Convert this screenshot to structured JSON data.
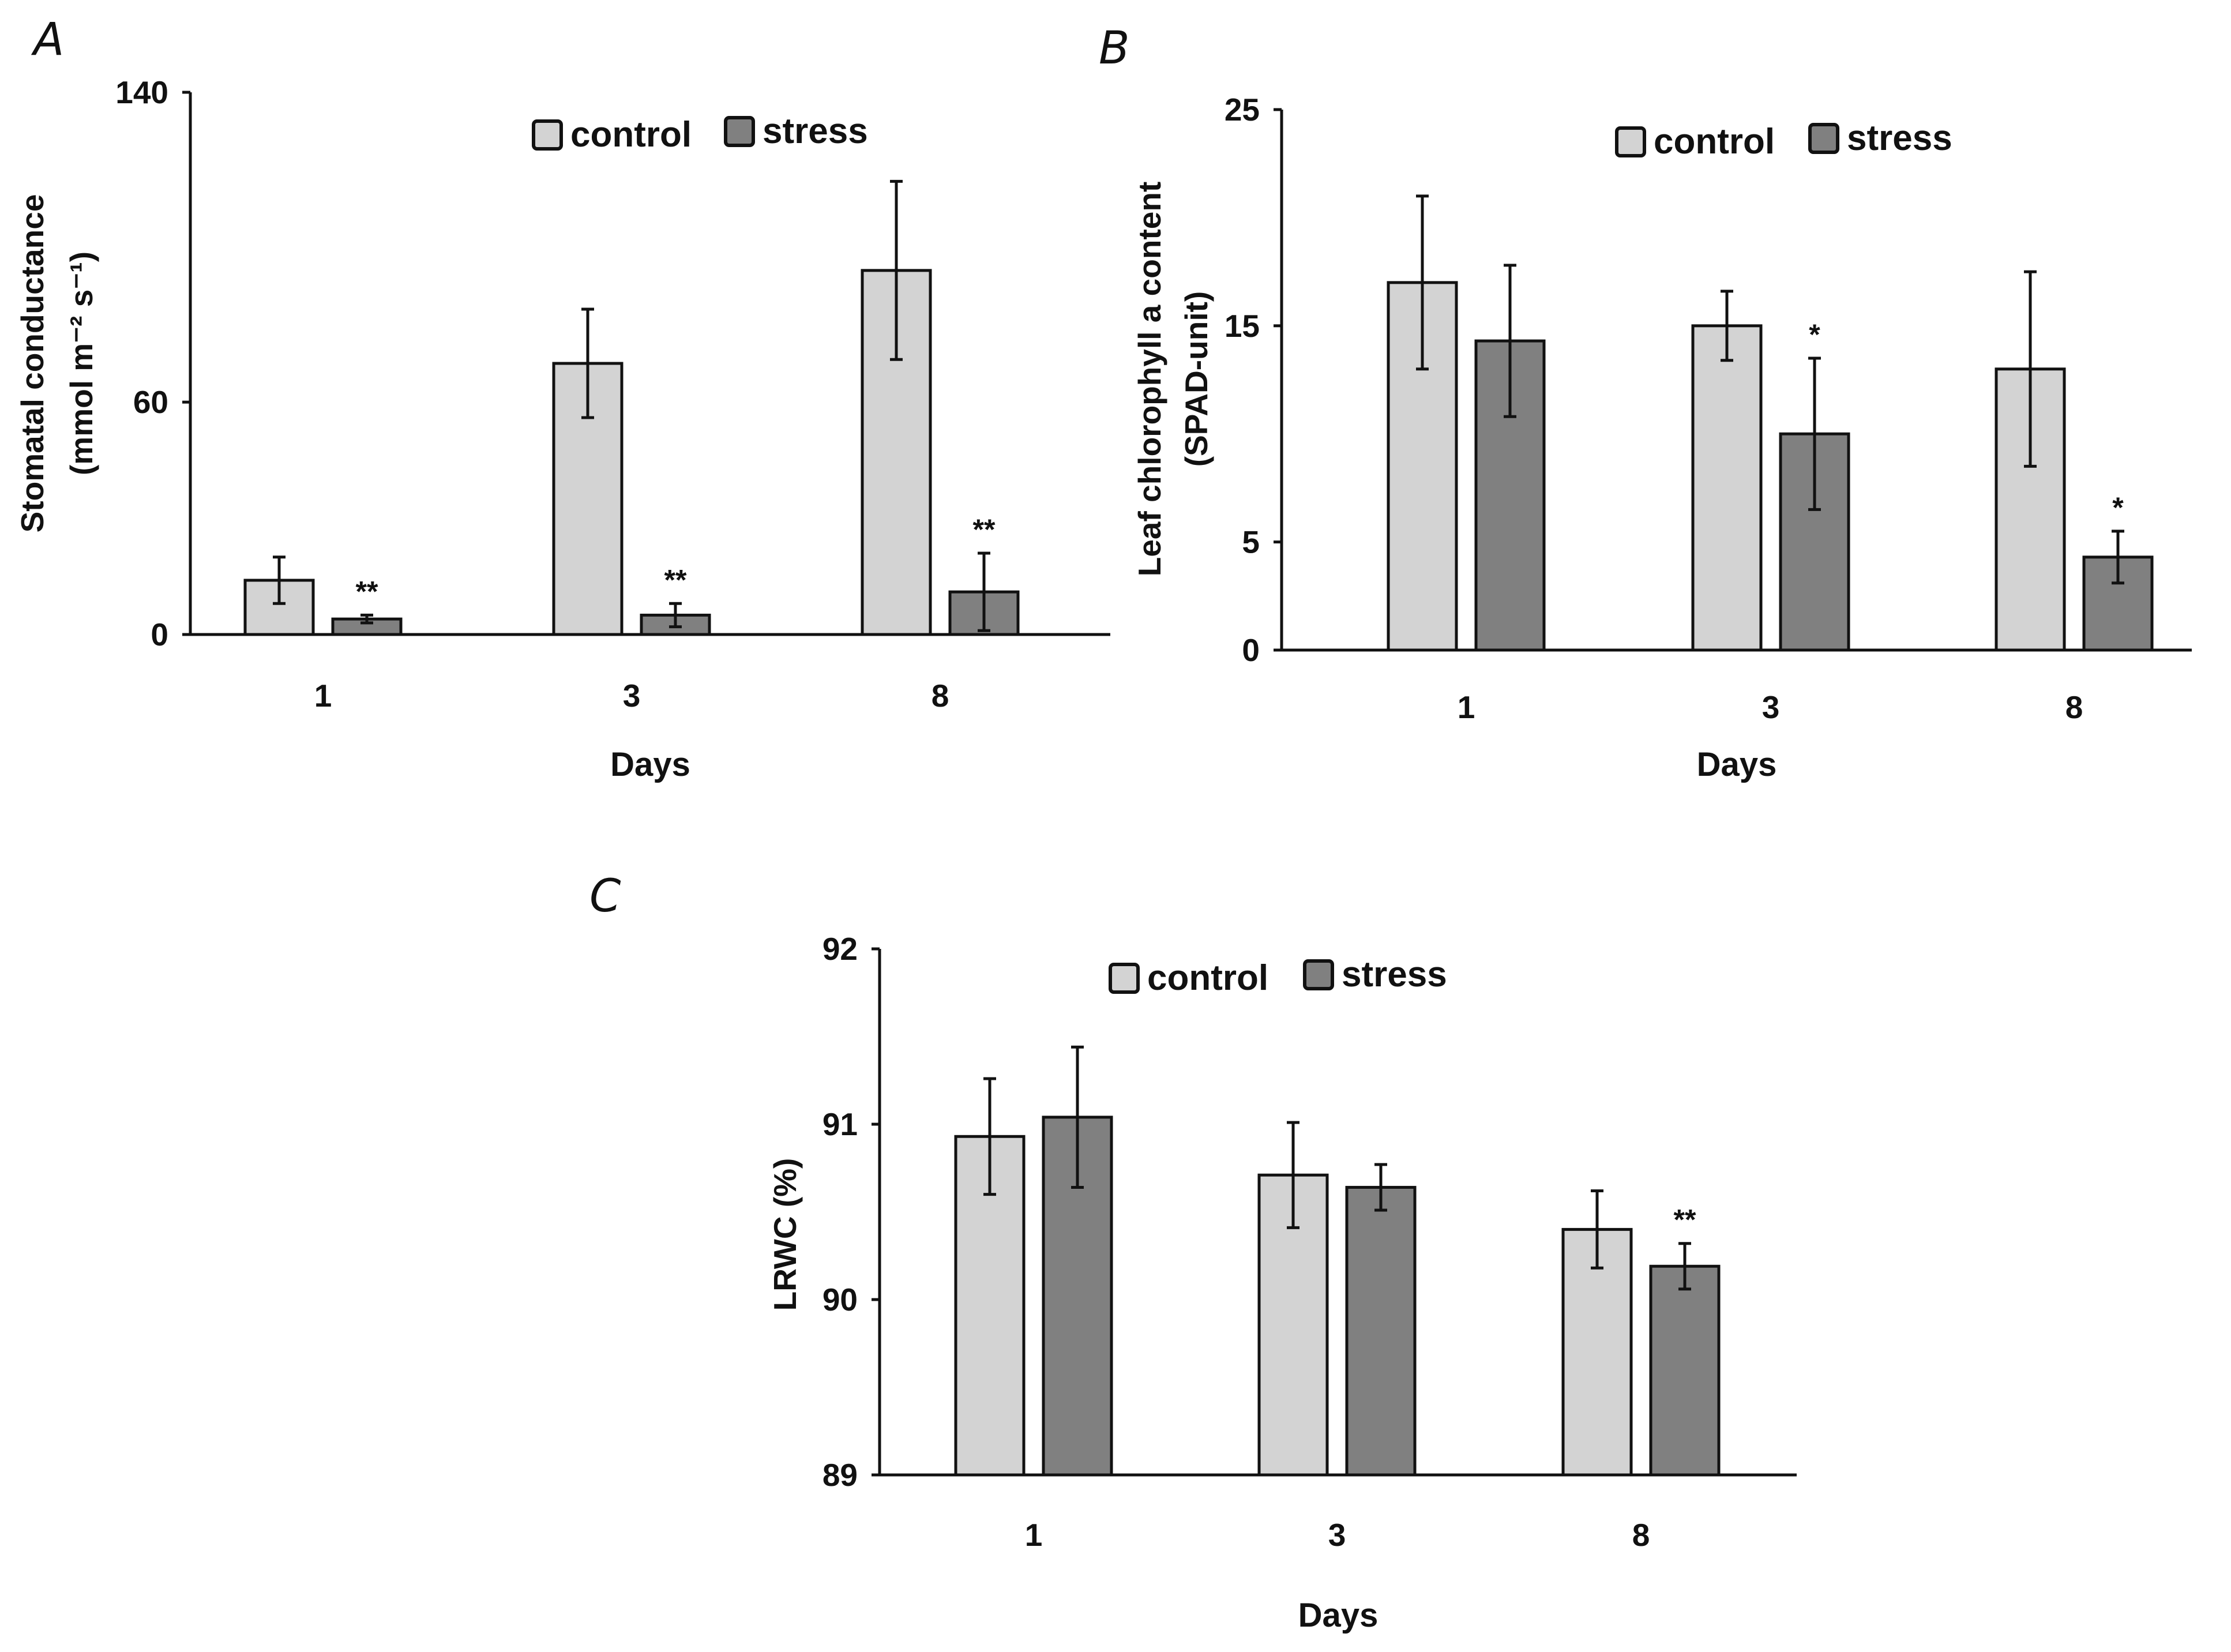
{
  "colors": {
    "control": "#d3d3d3",
    "stress": "#808080",
    "axis": "#111111"
  },
  "legend": {
    "control_label": "control",
    "stress_label": "stress"
  },
  "chart_data": [
    {
      "id": "A",
      "type": "bar",
      "panel_label": "A",
      "title": "",
      "categories": [
        "1",
        "3",
        "8"
      ],
      "series": [
        {
          "name": "control",
          "values": [
            14,
            70,
            94
          ],
          "errors": [
            6,
            14,
            23
          ]
        },
        {
          "name": "stress",
          "values": [
            4,
            5,
            11
          ],
          "errors": [
            1,
            3,
            10
          ]
        }
      ],
      "significance": {
        "stress": [
          "**",
          "**",
          "**"
        ]
      },
      "ylabel_line1": "Stomatal conductance",
      "ylabel_line2": "(mmol m⁻² s⁻¹)",
      "xlabel": "Days",
      "ylim": [
        0,
        140
      ],
      "yticks": [
        "0",
        "60",
        "140"
      ],
      "ytick_values": [
        0,
        60,
        140
      ],
      "legend_position": "top-right",
      "grid": false
    },
    {
      "id": "B",
      "type": "bar",
      "panel_label": "B",
      "title": "",
      "categories": [
        "1",
        "3",
        "8"
      ],
      "series": [
        {
          "name": "control",
          "values": [
            17,
            15,
            13
          ],
          "errors": [
            4,
            1.6,
            4.5
          ]
        },
        {
          "name": "stress",
          "values": [
            14.3,
            10,
            4.3
          ],
          "errors": [
            3.5,
            3.5,
            1.2
          ]
        }
      ],
      "significance": {
        "stress": [
          "",
          "*",
          "*"
        ]
      },
      "ylabel_line1": "Leaf chlorophyll a content",
      "ylabel_line2": "(SPAD-unit)",
      "xlabel": "Days",
      "ylim": [
        0,
        25
      ],
      "yticks": [
        "0",
        "5",
        "15",
        "25"
      ],
      "ytick_values": [
        0,
        5,
        15,
        25
      ],
      "legend_position": "top-right",
      "grid": false
    },
    {
      "id": "C",
      "type": "bar",
      "panel_label": "C",
      "title": "",
      "categories": [
        "1",
        "3",
        "8"
      ],
      "series": [
        {
          "name": "control",
          "values": [
            90.93,
            90.71,
            90.4
          ],
          "errors": [
            0.33,
            0.3,
            0.22
          ]
        },
        {
          "name": "stress",
          "values": [
            91.04,
            90.64,
            90.19
          ],
          "errors": [
            0.4,
            0.13,
            0.13
          ]
        }
      ],
      "significance": {
        "stress": [
          "",
          "",
          "**"
        ]
      },
      "ylabel_line1": "LRWC (%)",
      "ylabel_line2": "",
      "xlabel": "Days",
      "ylim": [
        89,
        92
      ],
      "yticks": [
        "89",
        "90",
        "91",
        "92"
      ],
      "ytick_values": [
        89,
        90,
        91,
        92
      ],
      "legend_position": "top-center",
      "grid": false
    }
  ]
}
